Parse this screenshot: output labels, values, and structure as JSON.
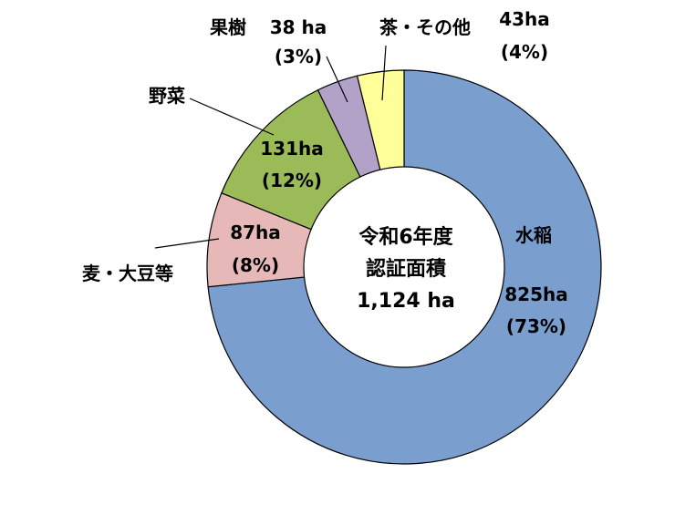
{
  "chart_data": {
    "type": "pie",
    "subtype": "donut",
    "title": "",
    "center_text": [
      "令和6年度",
      "認証面積",
      "1,124 ha"
    ],
    "total_ha": 1124,
    "slices": [
      {
        "name": "水稲",
        "value": 825,
        "value_label": "825ha",
        "percent_label": "(73%)",
        "color": "#7a9fcf"
      },
      {
        "name": "麦・大豆等",
        "value": 87,
        "value_label": "87ha",
        "percent_label": "(8%)",
        "color": "#e6b9b8"
      },
      {
        "name": "野菜",
        "value": 131,
        "value_label": "131ha",
        "percent_label": "(12%)",
        "color": "#9bbb59"
      },
      {
        "name": "果樹",
        "value": 38,
        "value_label": "38 ha",
        "percent_label": "(3%)",
        "color": "#b3a2c7"
      },
      {
        "name": "茶・その他",
        "value": 43,
        "value_label": "43ha",
        "percent_label": "(4%)",
        "color": "#ffff99"
      }
    ],
    "start_angle_deg": 0,
    "direction": "clockwise",
    "border_color": "#000000",
    "legend": "none"
  }
}
